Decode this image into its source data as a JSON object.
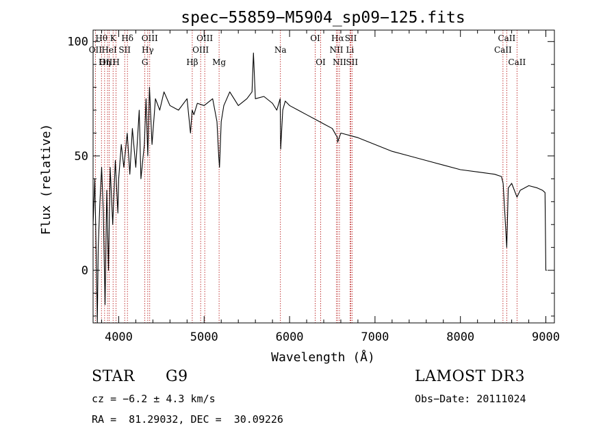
{
  "chart_data": {
    "type": "line",
    "title": "spec−55859−M5904_sp09−125.fits",
    "xlabel": "Wavelength (Å)",
    "ylabel": "Flux (relative)",
    "xlim": [
      3700,
      9100
    ],
    "ylim": [
      -23,
      105
    ],
    "x_ticks": [
      4000,
      5000,
      6000,
      7000,
      8000,
      9000
    ],
    "y_ticks": [
      0,
      50,
      100
    ],
    "line_color": "#000000",
    "marker_color": "#b00000",
    "series": [
      {
        "name": "spectrum",
        "x": [
          3700,
          3720,
          3740,
          3750,
          3760,
          3780,
          3800,
          3820,
          3840,
          3860,
          3880,
          3900,
          3930,
          3960,
          3990,
          4000,
          4030,
          4060,
          4100,
          4130,
          4160,
          4200,
          4240,
          4260,
          4300,
          4320,
          4340,
          4360,
          4390,
          4430,
          4480,
          4530,
          4600,
          4700,
          4800,
          4840,
          4860,
          4880,
          4920,
          5000,
          5100,
          5150,
          5170,
          5180,
          5200,
          5230,
          5300,
          5400,
          5500,
          5560,
          5577,
          5600,
          5700,
          5800,
          5850,
          5890,
          5896,
          5920,
          5950,
          6000,
          6100,
          6200,
          6300,
          6400,
          6500,
          6560,
          6563,
          6600,
          6700,
          6800,
          7000,
          7200,
          7400,
          7600,
          7800,
          8000,
          8200,
          8400,
          8480,
          8500,
          8542,
          8560,
          8600,
          8662,
          8700,
          8800,
          8900,
          8960,
          8990,
          9000,
          9010
        ],
        "y": [
          20,
          40,
          0,
          -33,
          10,
          30,
          45,
          25,
          -15,
          35,
          0,
          45,
          20,
          48,
          25,
          40,
          55,
          45,
          60,
          42,
          62,
          45,
          70,
          40,
          55,
          75,
          50,
          80,
          55,
          75,
          70,
          78,
          72,
          70,
          75,
          60,
          70,
          68,
          73,
          72,
          75,
          65,
          50,
          45,
          65,
          72,
          78,
          72,
          75,
          78,
          95,
          75,
          76,
          73,
          70,
          75,
          53,
          70,
          74,
          72,
          70,
          68,
          66,
          64,
          62,
          58,
          56,
          60,
          59,
          58,
          55,
          52,
          50,
          48,
          46,
          44,
          43,
          42,
          41,
          38,
          10,
          36,
          38,
          32,
          35,
          37,
          36,
          35,
          34,
          0,
          0
        ]
      }
    ],
    "lines": [
      {
        "label": "Hθ",
        "x": 3798,
        "row": 0
      },
      {
        "label": "OII",
        "x": 3727,
        "row": 1
      },
      {
        "label": "OIII",
        "x": 3869,
        "row": 2
      },
      {
        "label": "Hη",
        "x": 3835,
        "row": 2
      },
      {
        "label": "K",
        "x": 3934,
        "row": 0
      },
      {
        "label": "H",
        "x": 3969,
        "row": 2
      },
      {
        "label": "HeI",
        "x": 3889,
        "row": 1
      },
      {
        "label": "SII",
        "x": 4070,
        "row": 1
      },
      {
        "label": "Hδ",
        "x": 4102,
        "row": 0
      },
      {
        "label": "OIII",
        "x": 4363,
        "row": 0
      },
      {
        "label": "Hγ",
        "x": 4340,
        "row": 1
      },
      {
        "label": "G",
        "x": 4306,
        "row": 2
      },
      {
        "label": "Hβ",
        "x": 4861,
        "row": 2
      },
      {
        "label": "OIII",
        "x": 5007,
        "row": 0
      },
      {
        "label": "OIII",
        "x": 4959,
        "row": 1
      },
      {
        "label": "Mg",
        "x": 5175,
        "row": 2
      },
      {
        "label": "Na",
        "x": 5893,
        "row": 1
      },
      {
        "label": "OI",
        "x": 6300,
        "row": 0
      },
      {
        "label": "OI",
        "x": 6364,
        "row": 2
      },
      {
        "label": "Hα",
        "x": 6563,
        "row": 0
      },
      {
        "label": "NII",
        "x": 6548,
        "row": 1
      },
      {
        "label": "NII",
        "x": 6584,
        "row": 2
      },
      {
        "label": "SII",
        "x": 6717,
        "row": 0
      },
      {
        "label": "Li",
        "x": 6708,
        "row": 1
      },
      {
        "label": "SII",
        "x": 6731,
        "row": 2
      },
      {
        "label": "CaII",
        "x": 8542,
        "row": 0
      },
      {
        "label": "CaII",
        "x": 8498,
        "row": 1
      },
      {
        "label": "CaII",
        "x": 8662,
        "row": 2
      }
    ]
  },
  "info": {
    "class": "STAR",
    "subclass": "G9",
    "survey": "LAMOST DR3",
    "cz": "cz = −6.2 ± 4.3 km/s",
    "obs_date": "Obs−Date: 20111024",
    "radec": "RA =  81.29032, DEC =  30.09226"
  }
}
